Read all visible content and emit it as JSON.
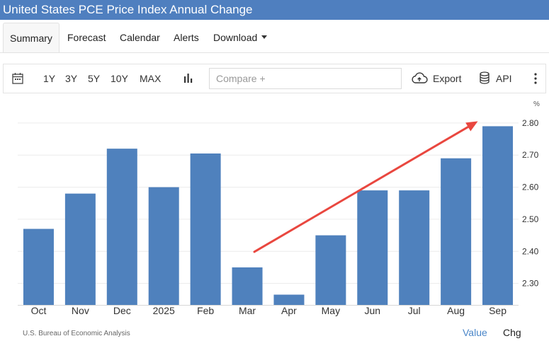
{
  "title": "United States PCE Price Index Annual Change",
  "tabs": [
    {
      "label": "Summary"
    },
    {
      "label": "Forecast"
    },
    {
      "label": "Calendar"
    },
    {
      "label": "Alerts"
    },
    {
      "label": "Download"
    }
  ],
  "toolbar": {
    "ranges": [
      "1Y",
      "3Y",
      "5Y",
      "10Y",
      "MAX"
    ],
    "compare_placeholder": "Compare +",
    "export_label": "Export",
    "api_label": "API"
  },
  "icons": {
    "calendar": "calendar-icon",
    "chart_type": "bar-chart-icon",
    "export": "cloud-upload-icon",
    "api": "database-icon",
    "menu": "kebab-menu-icon"
  },
  "colors": {
    "title_bar": "#4f7fbf",
    "bar": "#4f81bd",
    "arrow": "#e9473f",
    "link": "#4a86c8"
  },
  "chart_data": {
    "type": "bar",
    "unit_label": "%",
    "categories": [
      "Oct",
      "Nov",
      "Dec",
      "2025",
      "Feb",
      "Mar",
      "Apr",
      "May",
      "Jun",
      "Jul",
      "Aug",
      "Sep"
    ],
    "values": [
      2.47,
      2.58,
      2.72,
      2.6,
      2.705,
      2.35,
      2.265,
      2.45,
      2.59,
      2.59,
      2.69,
      2.79
    ],
    "y_ticks": [
      "2.30",
      "2.40",
      "2.50",
      "2.60",
      "2.70",
      "2.80"
    ],
    "ylim": [
      2.233,
      2.835
    ],
    "y_axis_side": "right",
    "grid": true,
    "annotation": {
      "type": "arrow",
      "from": {
        "x": "Mar",
        "y": 2.35
      },
      "to": {
        "x": "Sep",
        "y": 2.81
      }
    }
  },
  "footer": {
    "source": "U.S. Bureau of Economic Analysis",
    "value_label": "Value",
    "chg_label": "Chg"
  }
}
